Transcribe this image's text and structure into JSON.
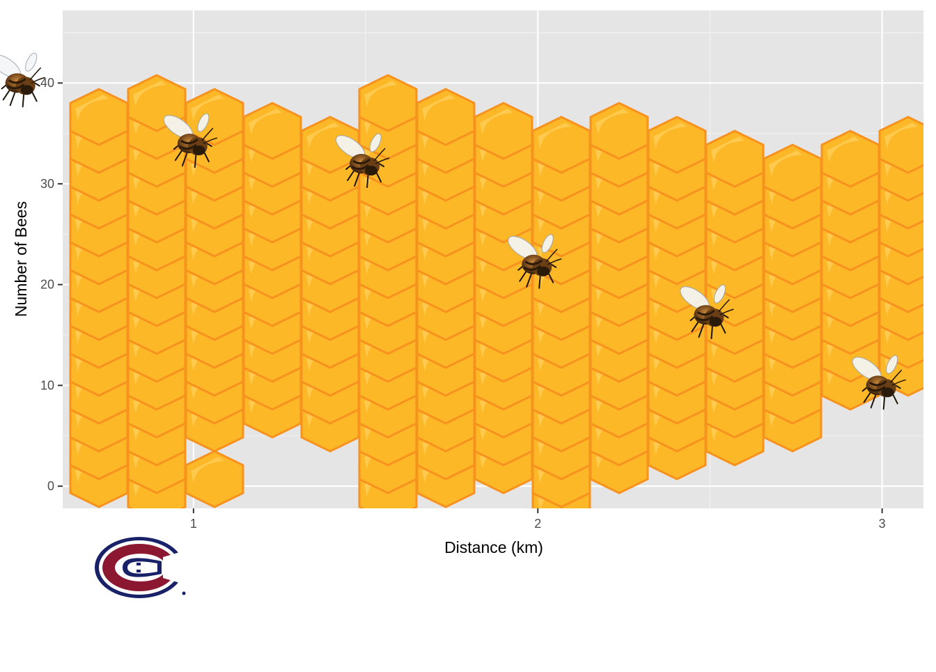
{
  "chart_data": {
    "type": "scatter",
    "title": "",
    "xlabel": "Distance (km)",
    "ylabel": "Number of Bees",
    "xlim": [
      0.62,
      3.12
    ],
    "ylim": [
      -2.2,
      47.2
    ],
    "x_ticks": [
      1,
      2,
      3
    ],
    "y_ticks": [
      0,
      10,
      20,
      30,
      40
    ],
    "x_tick_labels": [
      "1",
      "2",
      "3"
    ],
    "y_tick_labels": [
      "0",
      "10",
      "20",
      "30",
      "40"
    ],
    "grid": true,
    "panel_background": "#e5e5e5",
    "points": [
      {
        "x": 0.5,
        "y": 40
      },
      {
        "x": 1.0,
        "y": 34
      },
      {
        "x": 1.5,
        "y": 32
      },
      {
        "x": 2.0,
        "y": 22
      },
      {
        "x": 2.5,
        "y": 17
      },
      {
        "x": 3.0,
        "y": 10
      }
    ],
    "marker_icon": "bee-icon",
    "background_decoration": "honeycomb",
    "honeycomb_colors": {
      "fill": "#fdb827",
      "highlight": "#ffcc55",
      "stroke": "#f7921e"
    },
    "logo": {
      "icon": "canadiens-logo",
      "colors": {
        "red": "#8b1730",
        "blue": "#192168"
      }
    }
  }
}
